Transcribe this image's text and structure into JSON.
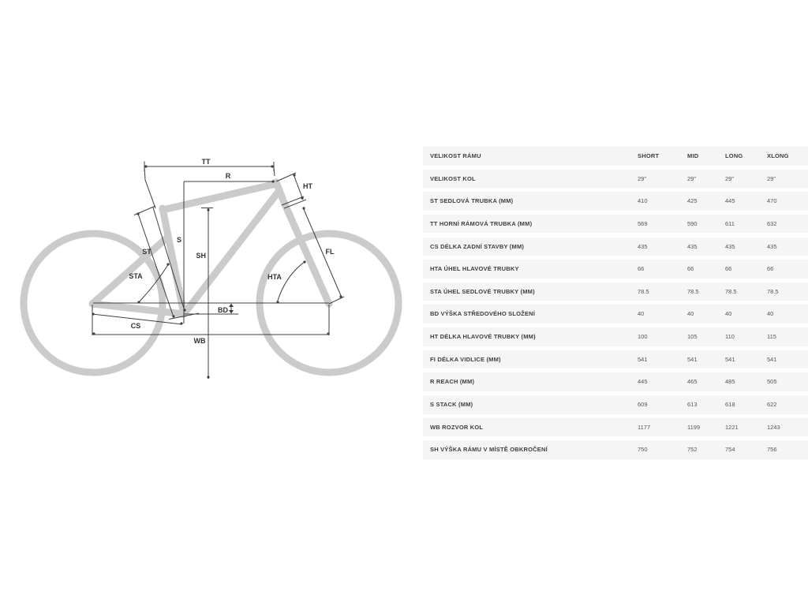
{
  "diagram": {
    "labels": {
      "tt": "TT",
      "r": "R",
      "ht": "HT",
      "s": "S",
      "sh": "SH",
      "st": "ST",
      "sta": "STA",
      "fl": "FL",
      "hta": "HTA",
      "bd": "BD",
      "cs": "CS",
      "wb": "WB"
    },
    "colors": {
      "frame": "#cbcbcb",
      "dimension_lines": "#3f3f43",
      "label_text": "#333333"
    }
  },
  "table": {
    "header_label": "VELIKOST RÁMU",
    "columns": [
      "SHORT",
      "MID",
      "LONG",
      "XLONG"
    ],
    "row_background": "#f5f5f6",
    "rows": [
      {
        "label": "VELIKOST KOL",
        "values": [
          "29\"",
          "29\"",
          "29\"",
          "29\""
        ]
      },
      {
        "label": "ST SEDLOVÁ TRUBKA (MM)",
        "values": [
          "410",
          "425",
          "445",
          "470"
        ]
      },
      {
        "label": "TT HORNÍ RÁMOVÁ TRUBKA (MM)",
        "values": [
          "569",
          "590",
          "611",
          "632"
        ]
      },
      {
        "label": "CS DÉLKA ZADNÍ STAVBY (MM)",
        "values": [
          "435",
          "435",
          "435",
          "435"
        ]
      },
      {
        "label": "HTA ÚHEL HLAVOVÉ TRUBKY",
        "values": [
          "66",
          "66",
          "66",
          "66"
        ]
      },
      {
        "label": "STA ÚHEL SEDLOVÉ TRUBKY (MM)",
        "values": [
          "78.5",
          "78.5",
          "78.5",
          "78.5"
        ]
      },
      {
        "label": "BD VÝŠKA STŘEDOVÉHO SLOŽENÍ",
        "values": [
          "40",
          "40",
          "40",
          "40"
        ]
      },
      {
        "label": "HT DÉLKA HLAVOVÉ TRUBKY (MM)",
        "values": [
          "100",
          "105",
          "110",
          "115"
        ]
      },
      {
        "label": "FI DÉLKA VIDLICE (MM)",
        "values": [
          "541",
          "541",
          "541",
          "541"
        ]
      },
      {
        "label": "R REACH (MM)",
        "values": [
          "445",
          "465",
          "485",
          "505"
        ]
      },
      {
        "label": "S STACK (MM)",
        "values": [
          "609",
          "613",
          "618",
          "622"
        ]
      },
      {
        "label": "WB ROZVOR KOL",
        "values": [
          "1177",
          "1199",
          "1221",
          "1243"
        ]
      },
      {
        "label": "SH VÝŠKA RÁMU V MÍSTĚ OBKROČENÍ",
        "values": [
          "750",
          "752",
          "754",
          "756"
        ]
      }
    ]
  }
}
